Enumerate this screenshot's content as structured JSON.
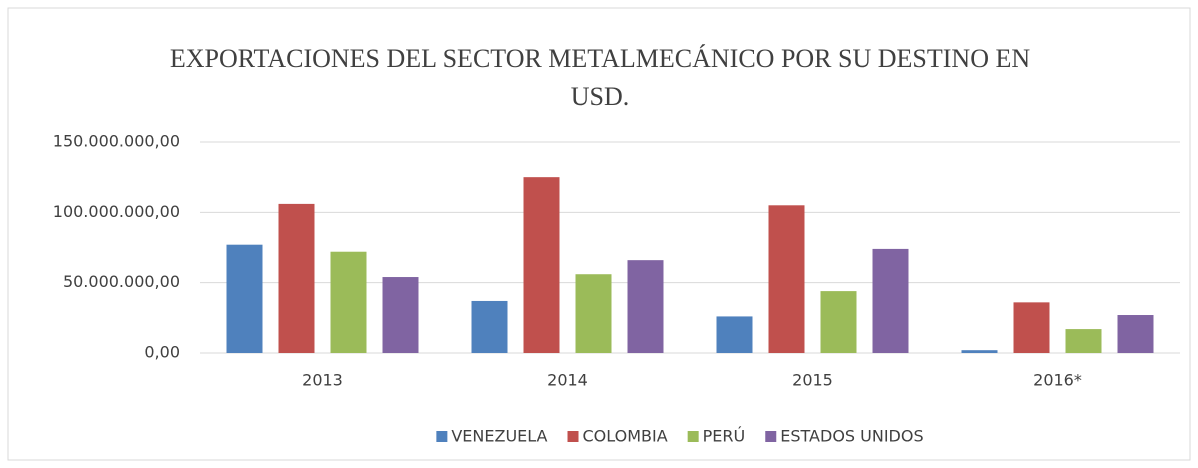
{
  "chart_data": {
    "type": "bar",
    "title": "EXPORTACIONES DEL SECTOR METALMECÁNICO POR SU DESTINO EN USD.",
    "categories": [
      "2013",
      "2014",
      "2015",
      "2016*"
    ],
    "series": [
      {
        "name": "VENEZUELA",
        "color": "#4f81bd",
        "values": [
          77000000,
          37000000,
          26000000,
          2000000
        ]
      },
      {
        "name": "COLOMBIA",
        "color": "#c0504d",
        "values": [
          106000000,
          125000000,
          105000000,
          36000000
        ]
      },
      {
        "name": "PERÚ",
        "color": "#9bbb59",
        "values": [
          72000000,
          56000000,
          44000000,
          17000000
        ]
      },
      {
        "name": "ESTADOS UNIDOS",
        "color": "#8064a2",
        "values": [
          54000000,
          66000000,
          74000000,
          27000000
        ]
      }
    ],
    "ylim": [
      0,
      150000000
    ],
    "yticks": [
      {
        "value": 0,
        "label": "0,00"
      },
      {
        "value": 50000000,
        "label": "50.000.000,00"
      },
      {
        "value": 100000000,
        "label": "100.000.000,00"
      },
      {
        "value": 150000000,
        "label": "150.000.000,00"
      }
    ],
    "grid": true,
    "legend": "bottom"
  }
}
